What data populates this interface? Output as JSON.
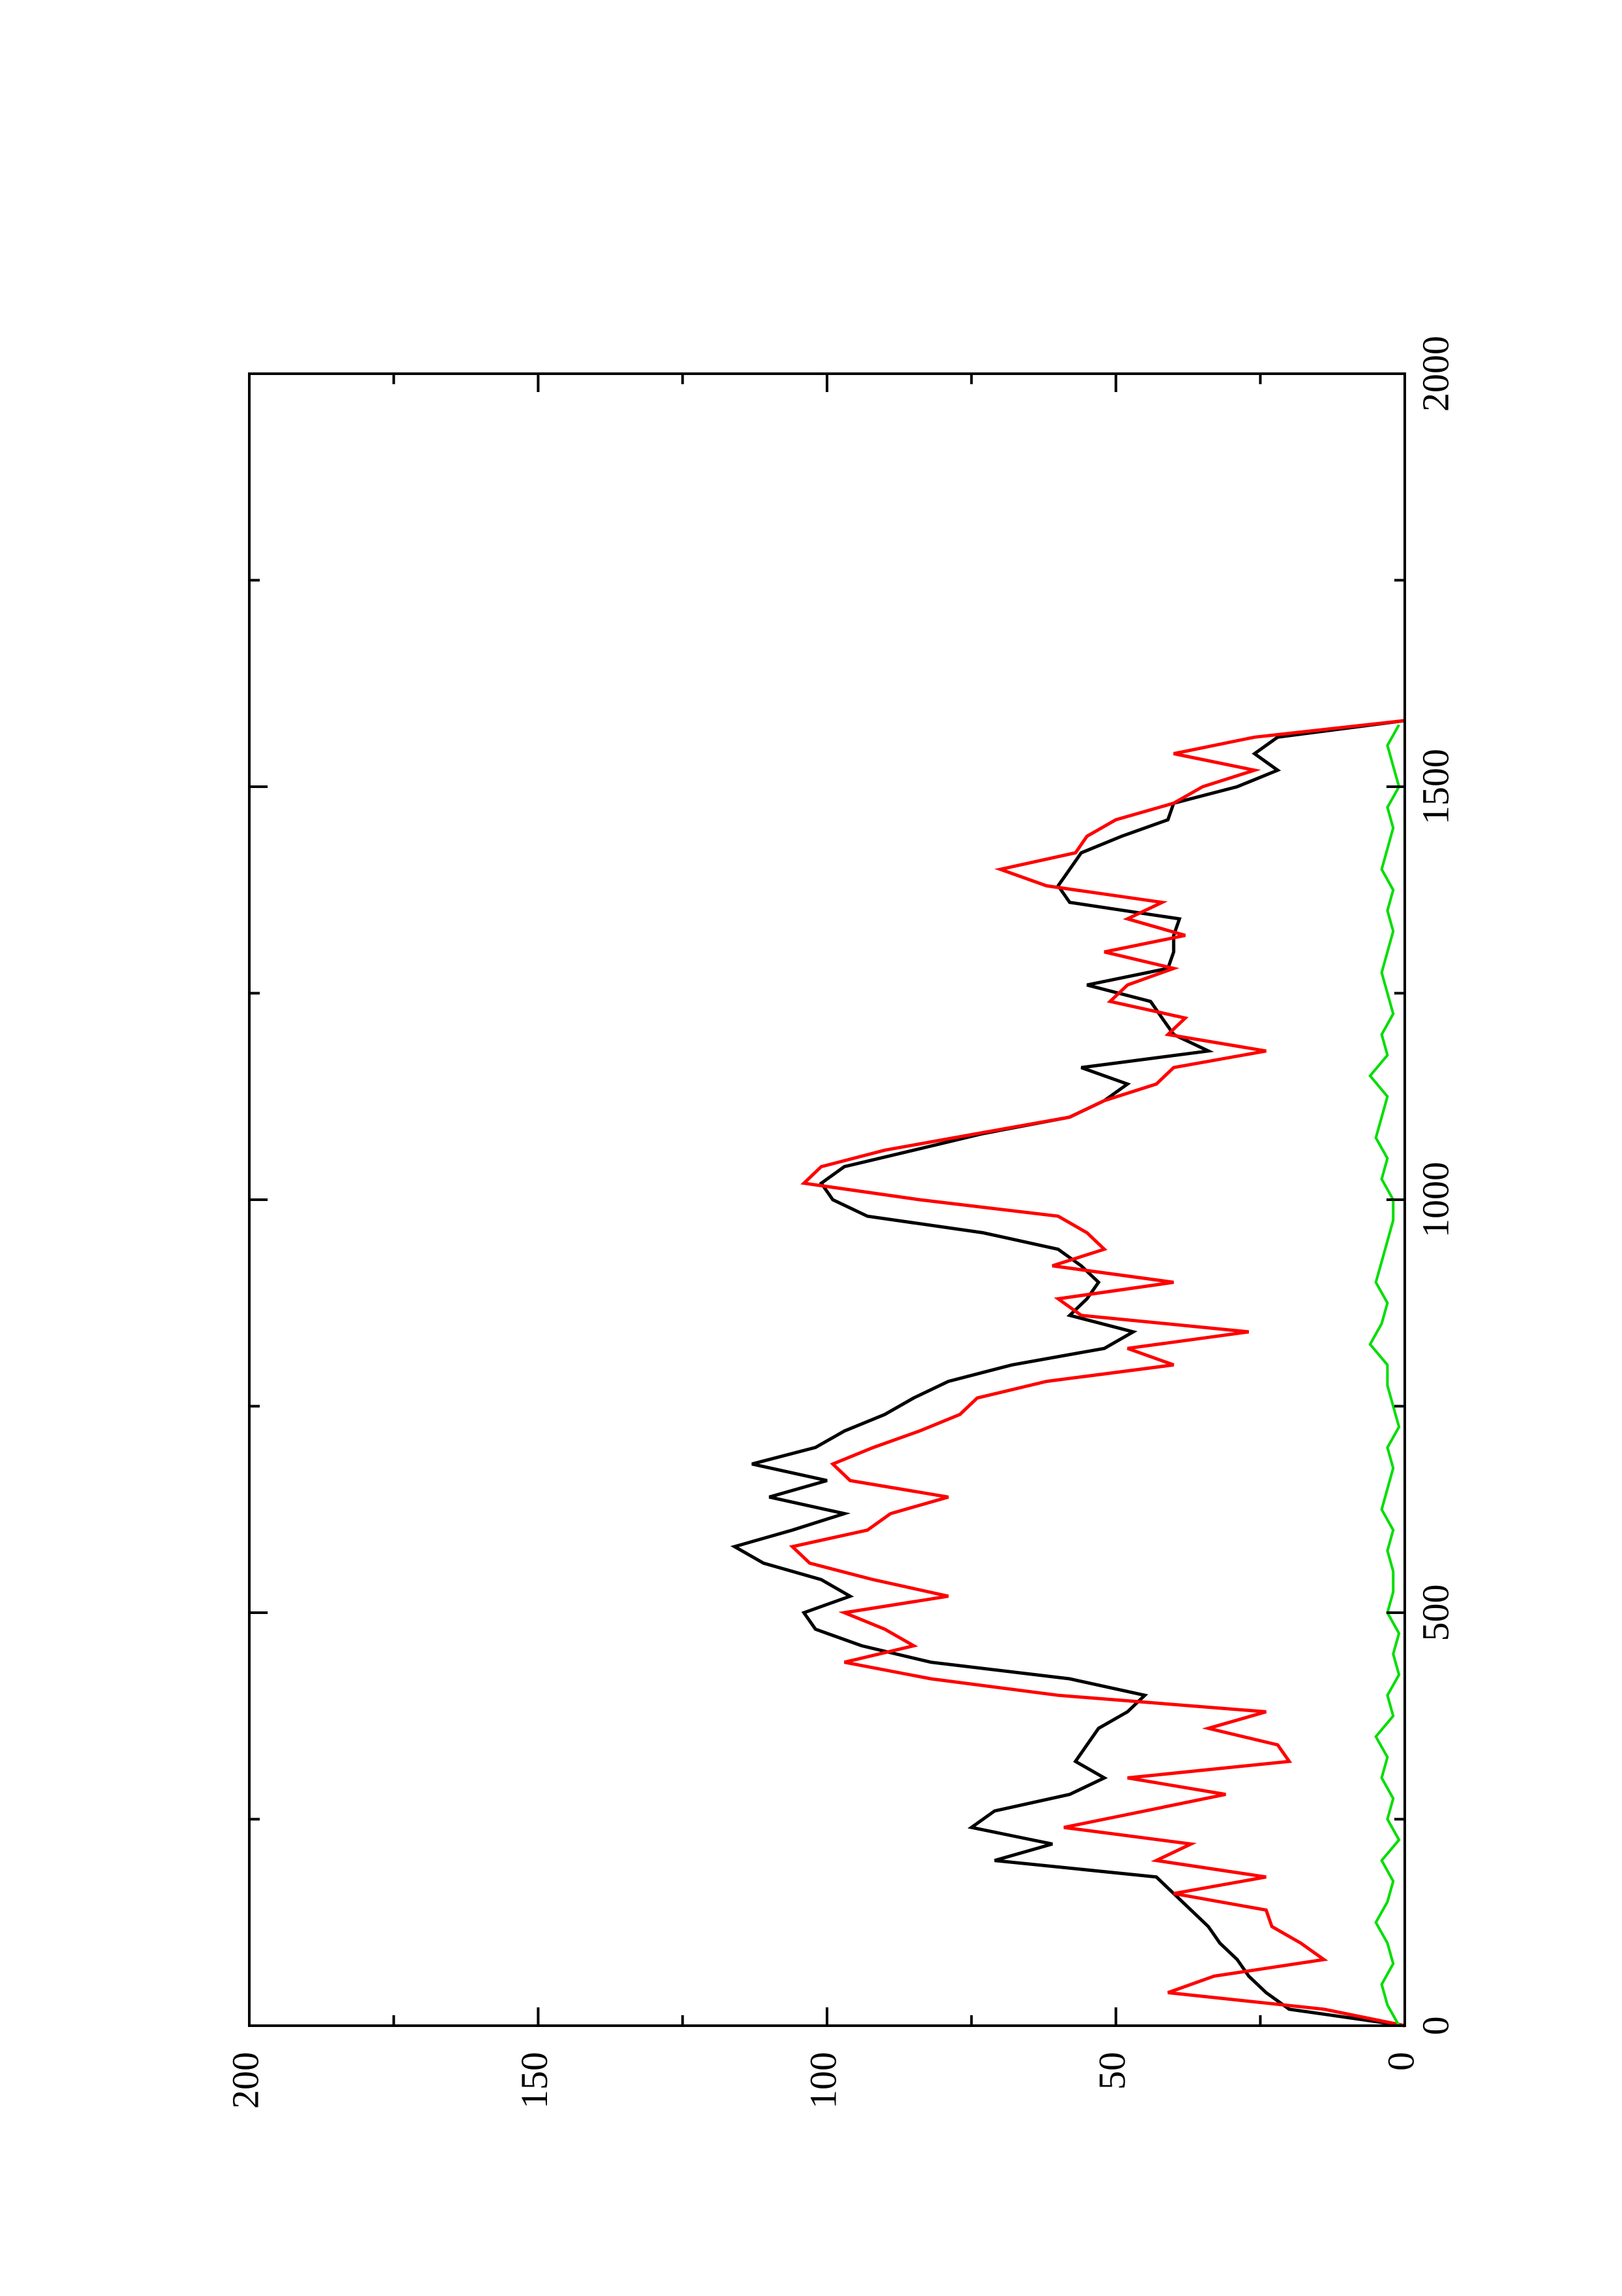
{
  "chart_data": {
    "type": "line",
    "orientation": "rotated-90-ccw",
    "title": "",
    "xlabel": "",
    "ylabel": "",
    "xlim": [
      0,
      2000
    ],
    "ylim": [
      0,
      200
    ],
    "x_ticks": [
      0,
      500,
      1000,
      1500,
      2000
    ],
    "x_tick_labels": [
      "0",
      "500",
      "1000",
      "1500",
      "2000"
    ],
    "y_ticks": [
      0,
      50,
      100,
      150,
      200
    ],
    "y_tick_labels": [
      "0",
      "50",
      "100",
      "150",
      "200"
    ],
    "grid": false,
    "legend": "none",
    "series": [
      {
        "color": "#000000",
        "x": [
          0,
          20,
          40,
          60,
          80,
          100,
          120,
          140,
          160,
          180,
          200,
          220,
          240,
          260,
          280,
          300,
          320,
          340,
          360,
          380,
          400,
          420,
          440,
          460,
          480,
          500,
          520,
          540,
          560,
          580,
          600,
          620,
          640,
          660,
          680,
          700,
          720,
          740,
          760,
          780,
          800,
          820,
          840,
          860,
          880,
          900,
          920,
          940,
          960,
          980,
          1000,
          1020,
          1040,
          1060,
          1080,
          1100,
          1120,
          1140,
          1160,
          1180,
          1200,
          1220,
          1240,
          1260,
          1280,
          1300,
          1320,
          1340,
          1360,
          1380,
          1400,
          1420,
          1440,
          1460,
          1480,
          1500,
          1520,
          1540,
          1560,
          1580
        ],
        "y": [
          0,
          20,
          24,
          27,
          29,
          32,
          34,
          37,
          40,
          43,
          71,
          61,
          75,
          71,
          58,
          52,
          57,
          55,
          53,
          48,
          45,
          58,
          82,
          94,
          102,
          104,
          96,
          101,
          111,
          116,
          106,
          97,
          110,
          100,
          113,
          102,
          97,
          90,
          85,
          79,
          68,
          52,
          47,
          58,
          55,
          53,
          56,
          60,
          73,
          93,
          99,
          101,
          97,
          85,
          73,
          58,
          52,
          48,
          56,
          34,
          40,
          42,
          44,
          55,
          41,
          40,
          40,
          39,
          58,
          60,
          58,
          56,
          49,
          41,
          40,
          29,
          22,
          26,
          22,
          0
        ]
      },
      {
        "color": "#ff0000",
        "x": [
          0,
          20,
          40,
          60,
          80,
          100,
          120,
          140,
          160,
          180,
          200,
          220,
          240,
          260,
          280,
          300,
          320,
          340,
          360,
          380,
          400,
          420,
          440,
          460,
          480,
          500,
          520,
          540,
          560,
          580,
          600,
          620,
          640,
          660,
          680,
          700,
          720,
          740,
          760,
          780,
          800,
          820,
          840,
          860,
          880,
          900,
          920,
          940,
          960,
          980,
          1000,
          1020,
          1040,
          1060,
          1080,
          1100,
          1120,
          1140,
          1160,
          1180,
          1200,
          1220,
          1240,
          1260,
          1280,
          1300,
          1320,
          1340,
          1360,
          1380,
          1400,
          1420,
          1440,
          1460,
          1480,
          1500,
          1520,
          1540,
          1560,
          1580
        ],
        "y": [
          0,
          14,
          41,
          33,
          14,
          18,
          23,
          24,
          40,
          24,
          43,
          37,
          59,
          45,
          31,
          48,
          20,
          22,
          34,
          24,
          60,
          82,
          97,
          85,
          90,
          97,
          79,
          92,
          103,
          106,
          93,
          89,
          79,
          96,
          99,
          92,
          84,
          77,
          74,
          62,
          40,
          48,
          27,
          56,
          60,
          40,
          61,
          52,
          55,
          60,
          84,
          104,
          101,
          90,
          74,
          58,
          52,
          43,
          40,
          24,
          41,
          38,
          51,
          48,
          40,
          52,
          38,
          48,
          42,
          62,
          70,
          57,
          55,
          50,
          40,
          35,
          26,
          40,
          26,
          0
        ]
      },
      {
        "color": "#00dd00",
        "x": [
          0,
          25,
          50,
          75,
          100,
          125,
          150,
          175,
          200,
          225,
          250,
          275,
          300,
          325,
          350,
          375,
          400,
          425,
          450,
          475,
          500,
          525,
          550,
          575,
          600,
          625,
          650,
          675,
          700,
          725,
          750,
          775,
          800,
          825,
          850,
          875,
          900,
          925,
          950,
          975,
          1000,
          1025,
          1050,
          1075,
          1100,
          1125,
          1150,
          1175,
          1200,
          1225,
          1250,
          1275,
          1300,
          1325,
          1350,
          1375,
          1400,
          1425,
          1450,
          1475,
          1500,
          1525,
          1550,
          1575
        ],
        "y": [
          1,
          3,
          4,
          2,
          3,
          5,
          3,
          2,
          4,
          1,
          3,
          2,
          4,
          3,
          5,
          2,
          3,
          1,
          2,
          1,
          3,
          2,
          2,
          3,
          2,
          4,
          3,
          2,
          3,
          1,
          2,
          3,
          3,
          6,
          4,
          3,
          5,
          4,
          3,
          2,
          2,
          4,
          3,
          5,
          4,
          3,
          6,
          3,
          4,
          2,
          3,
          4,
          3,
          2,
          3,
          2,
          4,
          3,
          2,
          3,
          1,
          2,
          3,
          1
        ]
      }
    ]
  }
}
